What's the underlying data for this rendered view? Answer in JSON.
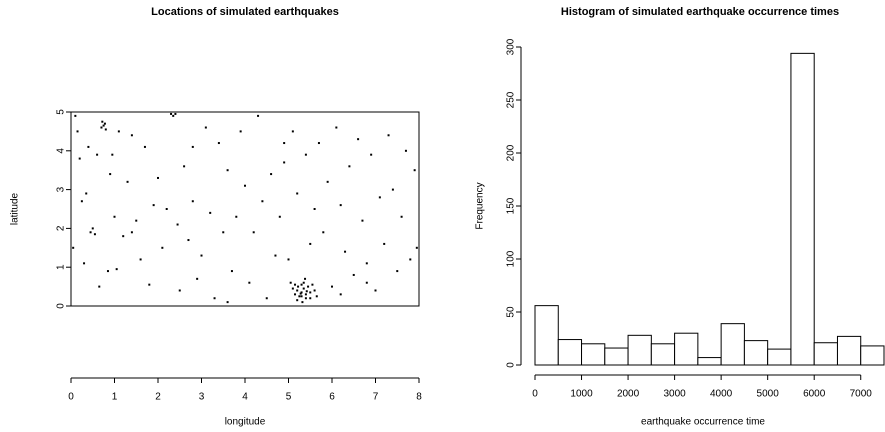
{
  "chart_data": [
    {
      "type": "scatter",
      "title": "Locations of simulated earthquakes",
      "x_label": "longitude",
      "y_label": "latitude",
      "color": "#000000",
      "xlim": [
        0,
        8
      ],
      "ylim": [
        0,
        5
      ],
      "xticks": [
        0,
        1,
        2,
        3,
        4,
        5,
        6,
        7,
        8
      ],
      "yticks": [
        0,
        1,
        2,
        3,
        4,
        5
      ],
      "x": [
        0.05,
        0.1,
        0.15,
        0.2,
        0.25,
        0.3,
        0.35,
        0.4,
        0.45,
        0.5,
        0.55,
        0.6,
        0.65,
        0.7,
        0.72,
        0.75,
        0.78,
        0.8,
        0.85,
        0.9,
        0.95,
        1.0,
        1.05,
        1.1,
        1.2,
        1.3,
        1.4,
        1.5,
        1.6,
        1.7,
        1.8,
        1.9,
        2.0,
        2.1,
        2.2,
        2.3,
        2.35,
        2.4,
        2.45,
        2.5,
        2.6,
        2.7,
        2.8,
        2.9,
        3.0,
        3.1,
        3.2,
        3.3,
        3.4,
        3.5,
        3.6,
        3.7,
        3.8,
        3.9,
        4.0,
        4.1,
        4.2,
        4.3,
        4.4,
        4.5,
        4.6,
        4.7,
        4.8,
        4.9,
        5.0,
        5.1,
        5.2,
        5.4,
        5.5,
        5.6,
        5.7,
        5.8,
        5.9,
        6.0,
        6.1,
        6.2,
        6.3,
        6.4,
        6.5,
        6.6,
        6.7,
        6.8,
        6.9,
        7.0,
        7.1,
        7.2,
        7.3,
        7.4,
        7.5,
        7.6,
        7.7,
        7.8,
        7.9,
        7.95,
        6.2,
        3.6,
        1.4,
        2.8,
        4.9,
        6.8,
        5.3,
        5.2,
        5.4,
        5.35,
        5.25,
        5.45,
        5.15,
        5.5,
        5.3,
        5.4,
        5.2,
        5.1,
        5.6,
        5.35,
        5.28,
        5.42,
        5.22,
        5.5,
        5.05,
        5.65,
        5.32,
        5.38,
        5.15,
        5.55,
        5.3
      ],
      "y": [
        1.5,
        4.9,
        4.5,
        3.8,
        2.7,
        1.1,
        2.9,
        4.1,
        1.9,
        2.0,
        1.85,
        3.9,
        0.5,
        4.6,
        4.75,
        4.65,
        4.7,
        4.55,
        0.9,
        3.4,
        3.9,
        2.3,
        0.95,
        4.5,
        1.8,
        3.2,
        4.4,
        2.2,
        1.2,
        4.1,
        0.55,
        2.6,
        3.3,
        1.5,
        2.5,
        4.95,
        4.9,
        4.95,
        2.1,
        0.4,
        3.6,
        1.7,
        2.7,
        0.7,
        1.3,
        4.6,
        2.4,
        0.2,
        4.2,
        1.9,
        3.5,
        0.9,
        2.3,
        4.5,
        3.1,
        0.6,
        1.9,
        4.9,
        2.7,
        0.2,
        3.4,
        1.3,
        2.3,
        3.7,
        1.2,
        4.5,
        2.9,
        3.9,
        1.6,
        2.5,
        4.2,
        1.9,
        3.2,
        0.5,
        4.6,
        2.6,
        1.4,
        3.6,
        0.8,
        4.3,
        2.2,
        1.1,
        3.9,
        0.4,
        2.8,
        1.6,
        4.4,
        3.0,
        0.9,
        2.3,
        4.0,
        1.2,
        3.5,
        1.5,
        0.3,
        0.1,
        1.9,
        4.1,
        4.2,
        0.6,
        0.35,
        0.4,
        0.3,
        0.45,
        0.25,
        0.5,
        0.3,
        0.35,
        0.55,
        0.2,
        0.15,
        0.45,
        0.4,
        0.6,
        0.32,
        0.38,
        0.5,
        0.2,
        0.6,
        0.25,
        0.1,
        0.7,
        0.55,
        0.55,
        0.25
      ]
    },
    {
      "type": "histogram",
      "title": "Histogram of simulated earthquake occurrence times",
      "x_label": "earthquake occurrence time",
      "y_label": "Frequency",
      "bins": [
        0,
        500,
        1000,
        1500,
        2000,
        2500,
        3000,
        3500,
        4000,
        4500,
        5000,
        5500,
        6000,
        6500,
        7000,
        7500
      ],
      "values": [
        56,
        24,
        20,
        16,
        28,
        20,
        30,
        7,
        39,
        23,
        15,
        294,
        21,
        27,
        18
      ],
      "xlim": [
        0,
        7500
      ],
      "ylim": [
        0,
        300
      ],
      "xticks": [
        0,
        1000,
        2000,
        3000,
        4000,
        5000,
        6000,
        7000
      ],
      "yticks": [
        0,
        50,
        100,
        150,
        200,
        250,
        300
      ]
    }
  ]
}
